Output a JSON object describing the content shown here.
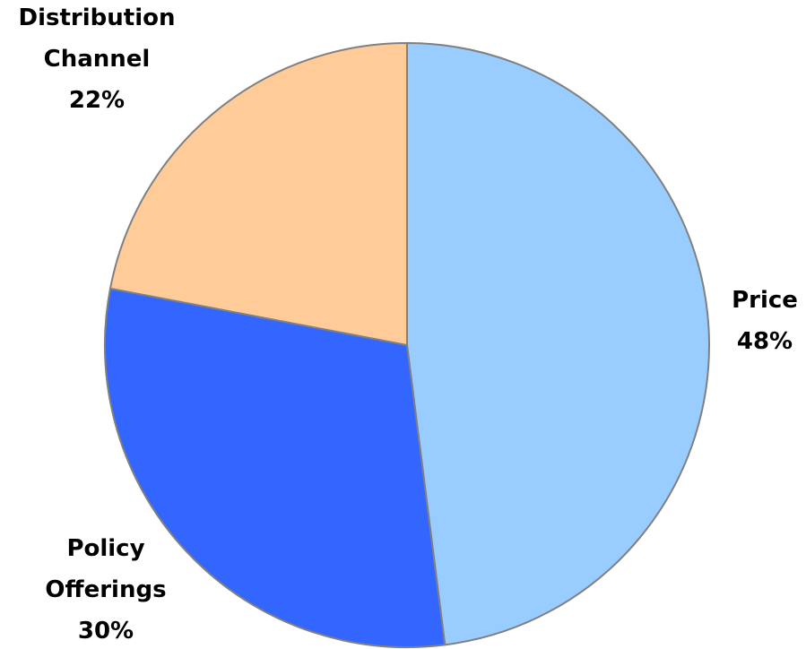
{
  "chart_data": {
    "type": "pie",
    "slices": [
      {
        "name": "Price",
        "label_lines": [
          "Price"
        ],
        "value": 48,
        "value_label": "48%",
        "color": "#99CCFF"
      },
      {
        "name": "Policy Offerings",
        "label_lines": [
          "Policy",
          "Offerings"
        ],
        "value": 30,
        "value_label": "30%",
        "color": "#3366FF"
      },
      {
        "name": "Distribution Channel",
        "label_lines": [
          "Distribution",
          "Channel"
        ],
        "value": 22,
        "value_label": "22%",
        "color": "#FFCC99"
      }
    ],
    "start_angle": "12 o'clock",
    "direction": "clockwise",
    "slice_border_color": "#808080",
    "legend": "none"
  }
}
